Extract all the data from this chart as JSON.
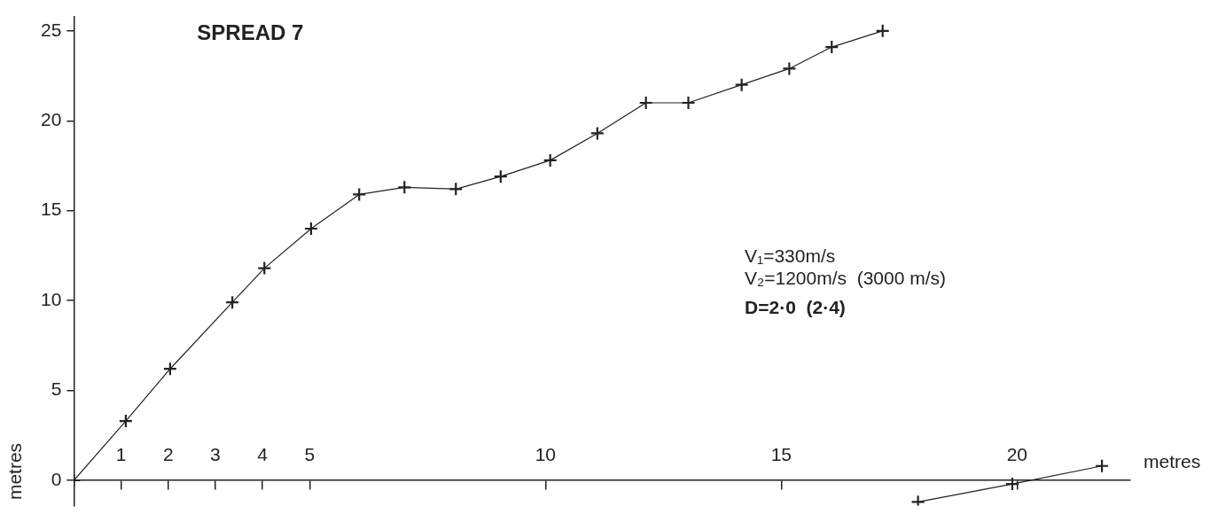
{
  "chart_data": {
    "type": "line",
    "title": "SPREAD 7",
    "xlabel": "metres",
    "ylabel": "metres",
    "annotations": [
      "V₁=330m/s",
      "V₂=1200m/s  (3000 m/s)",
      "D=2·0  (2·4)"
    ],
    "xlim": [
      0,
      22.4
    ],
    "ylim": [
      -1.4,
      25.8
    ],
    "xticks": [
      1,
      2,
      3,
      4,
      5,
      10,
      15,
      20
    ],
    "yticks": [
      0,
      5,
      10,
      15,
      20,
      25
    ],
    "grid": false,
    "legend": false,
    "marker": "cross",
    "line_style": "solid",
    "series": [
      {
        "color": "#222222",
        "x": [
          0,
          1.1,
          2.04,
          3.36,
          4.04,
          5.03,
          6.05,
          7.01,
          8.1,
          9.05,
          10.1,
          11.1,
          12.13,
          13.03,
          14.16,
          15.17,
          16.07,
          17.15
        ],
        "values": [
          0,
          3.3,
          6.2,
          9.9,
          11.8,
          14.0,
          15.9,
          16.3,
          16.2,
          16.9,
          17.8,
          19.3,
          21.0,
          21.0,
          22.0,
          22.9,
          24.1,
          25.0
        ]
      },
      {
        "color": "#222222",
        "x": [
          17.9,
          19.9,
          21.8
        ],
        "values": [
          -1.2,
          -0.2,
          0.8
        ]
      }
    ]
  }
}
